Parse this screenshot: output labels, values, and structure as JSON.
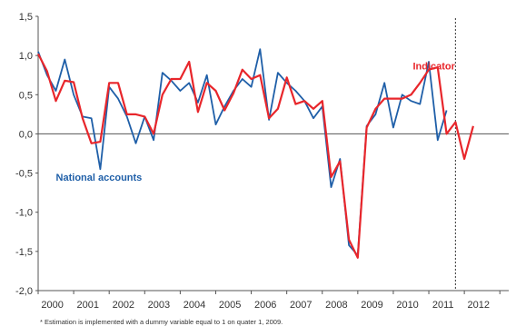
{
  "chart_data": {
    "type": "line",
    "title": "",
    "xlabel": "",
    "ylabel": "",
    "ylim": [
      -2.0,
      1.5
    ],
    "xlim": [
      2000.0,
      2013.25
    ],
    "y_ticks": [
      1.5,
      1.0,
      0.5,
      0.0,
      -0.5,
      -1.0,
      -1.5,
      -2.0
    ],
    "y_tick_labels": [
      "1,5",
      "1,0",
      "0,5",
      "0,0",
      "-0,5",
      "-1,0",
      "-1,5",
      "-2,0"
    ],
    "x_tick_labels": [
      {
        "x": 2000.4,
        "label": "2000"
      },
      {
        "x": 2001.4,
        "label": "2001"
      },
      {
        "x": 2002.4,
        "label": "2002"
      },
      {
        "x": 2003.4,
        "label": "2003"
      },
      {
        "x": 2004.4,
        "label": "2004"
      },
      {
        "x": 2005.4,
        "label": "2005"
      },
      {
        "x": 2006.4,
        "label": "2006"
      },
      {
        "x": 2007.4,
        "label": "2007"
      },
      {
        "x": 2008.4,
        "label": "2008"
      },
      {
        "x": 2009.4,
        "label": "2009"
      },
      {
        "x": 2010.4,
        "label": "2010"
      },
      {
        "x": 2011.4,
        "label": "2011"
      },
      {
        "x": 2012.4,
        "label": "2012"
      }
    ],
    "zero_line": 0,
    "forecast_line_x": 2011.75,
    "grid": false,
    "series": [
      {
        "name": "National accounts",
        "color": "#1f5fa8",
        "label_position": [
          2000.5,
          -0.6
        ],
        "x": [
          2000.0,
          2000.25,
          2000.5,
          2000.75,
          2001.0,
          2001.25,
          2001.5,
          2001.75,
          2002.0,
          2002.25,
          2002.5,
          2002.75,
          2003.0,
          2003.25,
          2003.5,
          2003.75,
          2004.0,
          2004.25,
          2004.5,
          2004.75,
          2005.0,
          2005.25,
          2005.5,
          2005.75,
          2006.0,
          2006.25,
          2006.5,
          2006.75,
          2007.0,
          2007.25,
          2007.5,
          2007.75,
          2008.0,
          2008.25,
          2008.5,
          2008.75,
          2009.0,
          2009.25,
          2009.5,
          2009.75,
          2010.0,
          2010.25,
          2010.5,
          2010.75,
          2011.0,
          2011.25,
          2011.5
        ],
        "values": [
          1.05,
          0.75,
          0.55,
          0.95,
          0.5,
          0.22,
          0.2,
          -0.45,
          0.6,
          0.45,
          0.22,
          -0.12,
          0.22,
          -0.08,
          0.78,
          0.68,
          0.55,
          0.65,
          0.4,
          0.75,
          0.12,
          0.35,
          0.55,
          0.7,
          0.6,
          1.08,
          0.18,
          0.78,
          0.65,
          0.55,
          0.42,
          0.2,
          0.35,
          -0.68,
          -0.32,
          -1.42,
          -1.55,
          0.1,
          0.25,
          0.65,
          0.08,
          0.5,
          0.42,
          0.38,
          0.92,
          -0.08,
          0.3
        ]
      },
      {
        "name": "Indicator",
        "color": "#e8262b",
        "label_position": [
          2010.55,
          0.82
        ],
        "x": [
          2000.0,
          2000.25,
          2000.5,
          2000.75,
          2001.0,
          2001.25,
          2001.5,
          2001.75,
          2002.0,
          2002.25,
          2002.5,
          2002.75,
          2003.0,
          2003.25,
          2003.5,
          2003.75,
          2004.0,
          2004.25,
          2004.5,
          2004.75,
          2005.0,
          2005.25,
          2005.5,
          2005.75,
          2006.0,
          2006.25,
          2006.5,
          2006.75,
          2007.0,
          2007.25,
          2007.5,
          2007.75,
          2008.0,
          2008.25,
          2008.5,
          2008.75,
          2009.0,
          2009.25,
          2009.5,
          2009.75,
          2010.0,
          2010.25,
          2010.5,
          2010.75,
          2011.0,
          2011.25,
          2011.5,
          2011.75,
          2012.0,
          2012.25
        ],
        "values": [
          1.02,
          0.8,
          0.42,
          0.68,
          0.66,
          0.2,
          -0.12,
          -0.1,
          0.65,
          0.65,
          0.25,
          0.25,
          0.22,
          0.0,
          0.5,
          0.7,
          0.7,
          0.92,
          0.28,
          0.65,
          0.55,
          0.3,
          0.52,
          0.82,
          0.7,
          0.75,
          0.2,
          0.32,
          0.72,
          0.38,
          0.42,
          0.32,
          0.42,
          -0.55,
          -0.35,
          -1.35,
          -1.58,
          0.08,
          0.32,
          0.45,
          0.45,
          0.45,
          0.5,
          0.65,
          0.82,
          0.85,
          0.0,
          0.15,
          -0.32,
          0.1
        ]
      }
    ]
  },
  "footnote": "* Estimation is implemented with a dummy variable equal to 1 on quater 1, 2009."
}
